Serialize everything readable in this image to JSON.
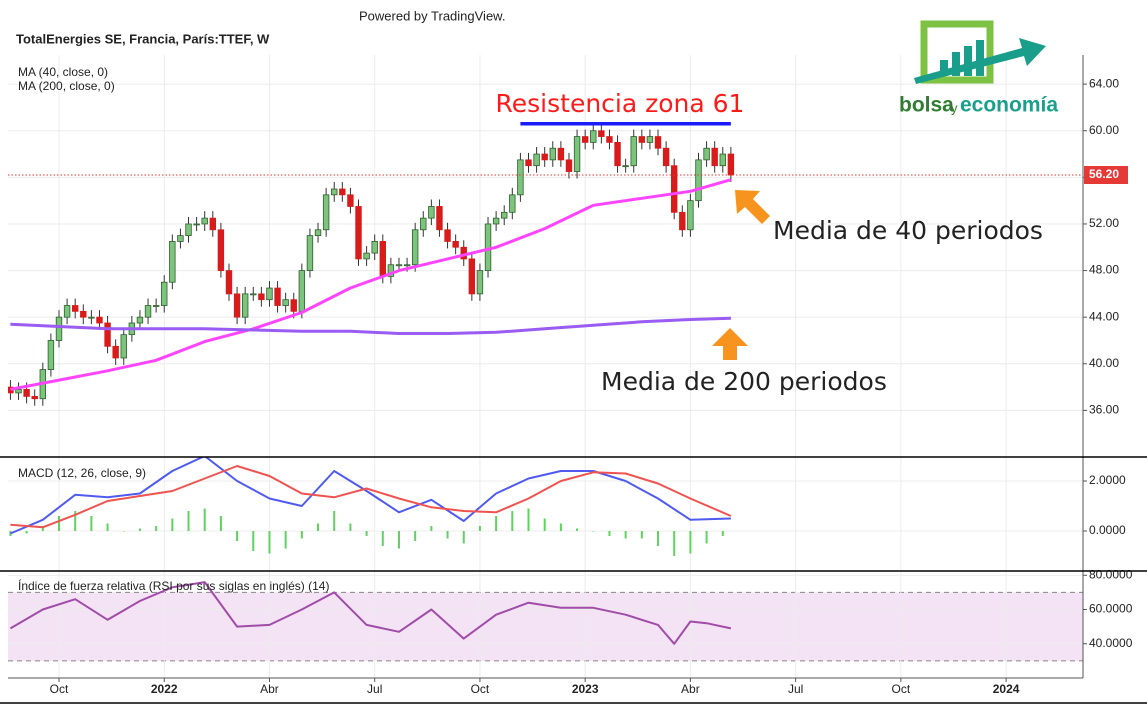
{
  "header": {
    "powered": "Powered by TradingView."
  },
  "logo": {
    "parts": [
      "bolsa",
      "y",
      "economía"
    ]
  },
  "chart_data": [
    {
      "type": "candlestick",
      "title": "TotalEnergies SE, Francia, París:TTEF, W",
      "x": [
        0,
        1,
        2,
        3,
        4,
        5,
        6,
        7,
        8,
        9,
        10,
        11,
        12,
        13,
        14,
        15,
        16,
        17,
        18,
        19,
        20,
        21,
        22,
        23,
        24,
        25,
        26,
        27,
        28,
        29,
        30,
        31,
        32,
        33,
        34,
        35,
        36,
        37,
        38,
        39,
        40,
        41,
        42,
        43,
        44,
        45,
        46,
        47,
        48,
        49,
        50,
        51,
        52,
        53,
        54,
        55,
        56,
        57,
        58,
        59,
        60,
        61,
        62,
        63,
        64,
        65,
        66,
        67,
        68,
        69,
        70,
        71,
        72,
        73,
        74,
        75,
        76,
        77,
        78,
        79,
        80,
        81,
        82,
        83,
        84,
        85,
        86,
        87,
        88,
        89
      ],
      "open": [
        38.0,
        37.5,
        37.8,
        37.2,
        37.0,
        39.5,
        42.0,
        44.0,
        45.0,
        44.5,
        44.0,
        44.0,
        43.5,
        41.5,
        40.5,
        42.5,
        43.5,
        44.0,
        45.0,
        45.0,
        47.0,
        50.5,
        51.0,
        52.0,
        52.0,
        52.5,
        51.5,
        48.0,
        46.0,
        44.0,
        46.0,
        46.0,
        45.5,
        46.5,
        45.0,
        45.5,
        44.5,
        48.0,
        51.0,
        51.5,
        54.5,
        55.0,
        54.5,
        53.5,
        49.0,
        49.5,
        50.5,
        47.5,
        48.5,
        48.5,
        48.5,
        51.5,
        52.5,
        53.5,
        51.5,
        50.5,
        50.0,
        49.0,
        46.0,
        48.0,
        52.0,
        52.5,
        53.0,
        54.5,
        57.5,
        57.0,
        58.0,
        57.5,
        58.5,
        57.5,
        56.5,
        59.5,
        59.0,
        60.0,
        59.5,
        59.0,
        57.0,
        57.0,
        59.5,
        59.0,
        59.5,
        58.5,
        57.0,
        53.0,
        51.5,
        54.0,
        57.5,
        58.5,
        57.0,
        58.0
      ],
      "high": [
        38.6,
        38.4,
        38.4,
        37.8,
        40.1,
        42.6,
        44.6,
        45.6,
        45.6,
        45.1,
        44.6,
        44.6,
        44.1,
        42.1,
        43.1,
        44.1,
        44.6,
        45.6,
        45.6,
        47.6,
        51.1,
        51.6,
        52.6,
        52.6,
        53.1,
        53.1,
        52.1,
        48.6,
        46.6,
        46.6,
        46.6,
        46.6,
        47.1,
        47.1,
        46.1,
        46.1,
        48.6,
        51.6,
        52.1,
        55.1,
        55.6,
        55.6,
        55.1,
        54.1,
        50.1,
        51.1,
        51.1,
        49.1,
        49.1,
        49.1,
        52.1,
        53.1,
        54.1,
        54.1,
        52.1,
        51.1,
        50.6,
        49.6,
        48.6,
        52.6,
        53.1,
        53.6,
        55.1,
        58.1,
        58.1,
        58.6,
        58.6,
        59.1,
        59.1,
        58.1,
        60.1,
        60.1,
        60.6,
        60.6,
        60.1,
        59.6,
        57.6,
        60.1,
        60.1,
        60.1,
        60.1,
        59.1,
        57.6,
        53.6,
        54.6,
        58.1,
        59.1,
        59.1,
        58.6,
        58.6
      ],
      "low": [
        36.9,
        36.9,
        36.6,
        36.4,
        36.4,
        38.9,
        41.4,
        43.4,
        43.9,
        43.4,
        43.4,
        42.9,
        40.9,
        39.9,
        39.9,
        41.9,
        42.9,
        43.4,
        44.4,
        44.4,
        46.4,
        49.9,
        50.4,
        51.4,
        51.4,
        50.9,
        47.4,
        45.4,
        43.4,
        43.4,
        45.4,
        44.9,
        44.9,
        44.4,
        44.4,
        43.9,
        43.9,
        47.4,
        50.4,
        50.9,
        53.9,
        53.9,
        52.9,
        48.4,
        48.4,
        48.9,
        46.9,
        46.9,
        47.9,
        47.9,
        47.9,
        50.9,
        51.9,
        50.9,
        49.9,
        49.4,
        48.4,
        45.4,
        45.4,
        47.4,
        51.4,
        51.9,
        52.4,
        53.9,
        56.4,
        56.4,
        56.9,
        56.9,
        56.9,
        55.9,
        55.9,
        58.4,
        58.4,
        58.9,
        58.4,
        56.4,
        56.4,
        56.4,
        58.4,
        58.4,
        57.9,
        56.4,
        52.4,
        50.9,
        50.9,
        53.4,
        56.9,
        56.4,
        56.4,
        55.6
      ],
      "close": [
        37.5,
        37.8,
        37.2,
        37.0,
        39.5,
        42.0,
        44.0,
        45.0,
        44.5,
        44.0,
        44.0,
        43.5,
        41.5,
        40.5,
        42.5,
        43.5,
        44.0,
        45.0,
        45.0,
        47.0,
        50.5,
        51.0,
        52.0,
        52.0,
        52.5,
        51.5,
        48.0,
        46.0,
        44.0,
        46.0,
        46.0,
        45.5,
        46.5,
        45.0,
        45.5,
        44.5,
        48.0,
        51.0,
        51.5,
        54.5,
        55.0,
        54.5,
        53.5,
        49.0,
        49.5,
        50.5,
        47.5,
        48.5,
        48.5,
        48.5,
        51.5,
        52.5,
        53.5,
        51.5,
        50.5,
        50.0,
        49.0,
        46.0,
        48.0,
        52.0,
        52.5,
        53.0,
        54.5,
        57.5,
        57.0,
        58.0,
        57.5,
        58.5,
        57.5,
        56.5,
        59.5,
        59.0,
        60.0,
        59.5,
        59.0,
        57.0,
        57.0,
        59.5,
        59.0,
        59.5,
        58.5,
        57.0,
        53.0,
        51.5,
        54.0,
        57.5,
        58.5,
        57.0,
        58.0,
        56.2
      ],
      "up_color": "#7cc47c",
      "down_color": "#d81b1b",
      "wick_color": "#333333",
      "series": [
        {
          "name": "MA (40, close, 0)",
          "color": "#ff44ff",
          "x": [
            0,
            6,
            12,
            18,
            24,
            30,
            36,
            42,
            48,
            54,
            60,
            66,
            72,
            78,
            84,
            89
          ],
          "values": [
            37.8,
            38.6,
            39.4,
            40.3,
            41.9,
            43.0,
            44.4,
            46.5,
            48.0,
            49.0,
            50.0,
            51.6,
            53.6,
            54.2,
            54.8,
            55.8
          ]
        },
        {
          "name": "MA (200, close, 0)",
          "color": "#9a5cf2",
          "x": [
            0,
            6,
            12,
            18,
            24,
            30,
            36,
            42,
            48,
            54,
            60,
            66,
            72,
            78,
            84,
            89
          ],
          "values": [
            43.4,
            43.2,
            43.0,
            43.0,
            43.0,
            42.9,
            42.8,
            42.8,
            42.6,
            42.6,
            42.7,
            43.0,
            43.3,
            43.6,
            43.8,
            43.9
          ]
        }
      ],
      "last_price": {
        "value": 56.2,
        "label": "56.20",
        "color": "#e53935"
      },
      "resistance": {
        "value": 60.6,
        "x": [
          63,
          89
        ],
        "color": "#1a1aff"
      },
      "annotations": [
        {
          "text": "Resistencia zona 61",
          "color": "#ff1a1a"
        },
        {
          "text": "Media de 40 periodos",
          "color": "#222222"
        },
        {
          "text": "Media de 200 periodos",
          "color": "#222222"
        }
      ],
      "xlim": [
        -0.3,
        132.5
      ],
      "ylim": [
        32,
        66.5
      ],
      "yticks": [
        {
          "value": 36,
          "label": "36.00"
        },
        {
          "value": 40,
          "label": "40.00"
        },
        {
          "value": 44,
          "label": "44.00"
        },
        {
          "value": 48,
          "label": "48.00"
        },
        {
          "value": 52,
          "label": "52.00"
        },
        {
          "value": 56,
          "label": "56.00"
        },
        {
          "value": 60,
          "label": "60.00"
        },
        {
          "value": 64,
          "label": "64.00"
        }
      ],
      "grid": true
    },
    {
      "type": "line",
      "title": "MACD (12, 26, close, 9)",
      "series": [
        {
          "color": "#4f5bf0",
          "x": [
            0,
            4,
            8,
            12,
            16,
            20,
            24,
            28,
            32,
            36,
            40,
            44,
            48,
            52,
            56,
            60,
            64,
            68,
            72,
            76,
            80,
            84,
            89
          ],
          "values": [
            -0.1,
            0.45,
            1.45,
            1.35,
            1.5,
            2.4,
            3.0,
            2.0,
            1.3,
            1.0,
            2.4,
            1.6,
            0.75,
            1.25,
            0.4,
            1.5,
            2.1,
            2.4,
            2.4,
            2.0,
            1.3,
            0.45,
            0.5
          ]
        },
        {
          "color": "#ef5350",
          "x": [
            0,
            4,
            8,
            12,
            16,
            20,
            24,
            28,
            32,
            36,
            40,
            44,
            48,
            52,
            56,
            60,
            64,
            68,
            72,
            76,
            80,
            84,
            89
          ],
          "values": [
            0.25,
            0.15,
            0.65,
            1.2,
            1.4,
            1.6,
            2.1,
            2.6,
            2.2,
            1.5,
            1.35,
            1.7,
            1.3,
            0.95,
            0.8,
            0.75,
            1.3,
            2.0,
            2.35,
            2.3,
            1.9,
            1.3,
            0.6
          ]
        }
      ],
      "histogram": {
        "color": "#5fd35f",
        "x": [
          0,
          2,
          4,
          6,
          8,
          10,
          12,
          14,
          16,
          18,
          20,
          22,
          24,
          26,
          28,
          30,
          32,
          34,
          36,
          38,
          40,
          42,
          44,
          46,
          48,
          50,
          52,
          54,
          56,
          58,
          60,
          62,
          64,
          66,
          68,
          70,
          72,
          74,
          76,
          78,
          80,
          82,
          84,
          86,
          88
        ],
        "values": [
          -0.2,
          -0.1,
          0.2,
          0.6,
          0.8,
          0.6,
          0.3,
          0.0,
          0.1,
          0.2,
          0.5,
          0.8,
          0.9,
          0.6,
          -0.4,
          -0.8,
          -0.9,
          -0.7,
          -0.3,
          0.3,
          0.8,
          0.3,
          -0.2,
          -0.6,
          -0.7,
          -0.4,
          0.2,
          -0.3,
          -0.5,
          0.2,
          0.6,
          0.8,
          0.9,
          0.5,
          0.3,
          0.1,
          0.0,
          -0.2,
          -0.3,
          -0.3,
          -0.6,
          -1.0,
          -0.9,
          -0.5,
          -0.2
        ]
      },
      "xlim": [
        -0.3,
        132.5
      ],
      "ylim": [
        -1.6,
        2.96
      ],
      "yticks": [
        {
          "value": 0,
          "label": "0.0000"
        },
        {
          "value": 2,
          "label": "2.0000"
        }
      ],
      "grid": true
    },
    {
      "type": "line",
      "title": "Índice de fuerza relativa (RSI por sus siglas en inglés) (14)",
      "series": [
        {
          "color": "#a04ca8",
          "x": [
            0,
            4,
            8,
            12,
            16,
            20,
            24,
            28,
            32,
            36,
            40,
            44,
            48,
            52,
            56,
            60,
            64,
            68,
            72,
            76,
            80,
            82,
            84,
            86,
            89
          ],
          "values": [
            49,
            60,
            66,
            54,
            65,
            73,
            76,
            50,
            51,
            60,
            70,
            51,
            47,
            60,
            43,
            57,
            64,
            61,
            61,
            57,
            51,
            40,
            53,
            52,
            49
          ]
        }
      ],
      "band": {
        "range": [
          30,
          70
        ],
        "color": "#f3e3f4"
      },
      "xlim": [
        -0.3,
        132.5
      ],
      "ylim": [
        20,
        82.5
      ],
      "yticks": [
        {
          "value": 40,
          "label": "40.0000"
        },
        {
          "value": 60,
          "label": "60.0000"
        },
        {
          "value": 80,
          "label": "80.0000"
        }
      ],
      "xticks": [
        {
          "value": 6,
          "label": "Oct"
        },
        {
          "value": 19,
          "label": "2022"
        },
        {
          "value": 32,
          "label": "Abr"
        },
        {
          "value": 45,
          "label": "Jul"
        },
        {
          "value": 58,
          "label": "Oct"
        },
        {
          "value": 71,
          "label": "2023"
        },
        {
          "value": 84,
          "label": "Abr"
        },
        {
          "value": 97,
          "label": "Jul"
        },
        {
          "value": 110,
          "label": "Oct"
        },
        {
          "value": 123,
          "label": "2024"
        }
      ],
      "grid": true
    }
  ]
}
